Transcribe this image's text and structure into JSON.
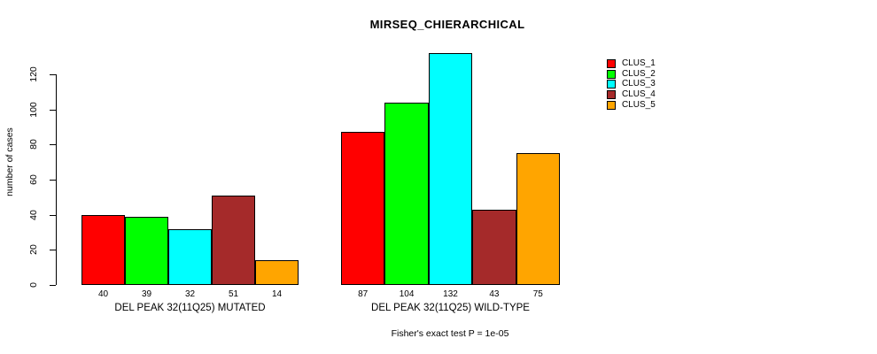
{
  "chart_data": {
    "type": "bar",
    "title": "MIRSEQ_CHIERARCHICAL",
    "ylabel": "number of cases",
    "caption": "Fisher's exact test P = 1e-05",
    "yticks": [
      0,
      20,
      40,
      60,
      80,
      100,
      120
    ],
    "ylim": [
      0,
      138
    ],
    "grid": false,
    "legend_position": "top-right",
    "bar_value_labels_shown": true,
    "categories": [
      "DEL PEAK 32(11Q25) MUTATED",
      "DEL PEAK 32(11Q25) WILD-TYPE"
    ],
    "series": [
      {
        "name": "CLUS_1",
        "color": "#FF0000",
        "values": [
          40,
          87
        ]
      },
      {
        "name": "CLUS_2",
        "color": "#00FF00",
        "values": [
          39,
          104
        ]
      },
      {
        "name": "CLUS_3",
        "color": "#00FFFF",
        "values": [
          32,
          132
        ]
      },
      {
        "name": "CLUS_4",
        "color": "#A52A2A",
        "values": [
          51,
          43
        ]
      },
      {
        "name": "CLUS_5",
        "color": "#FFA500",
        "values": [
          14,
          75
        ]
      }
    ]
  }
}
